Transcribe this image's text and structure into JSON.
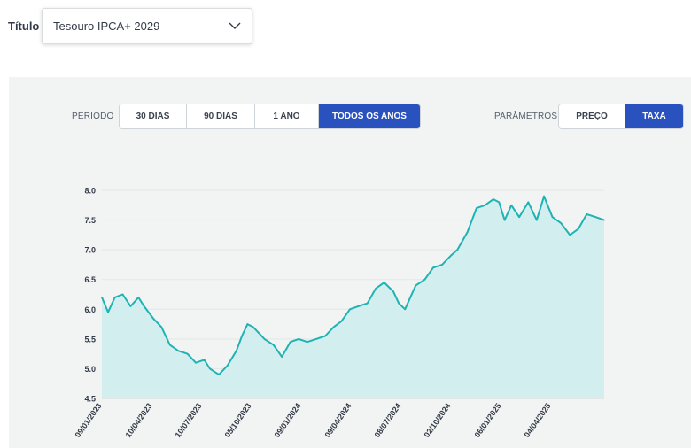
{
  "selector": {
    "label": "Título",
    "value": "Tesouro IPCA+ 2029",
    "icon": "chevron-down-icon"
  },
  "controls": {
    "period_label": "PERIODO",
    "period_options": [
      "30 DIAS",
      "90 DIAS",
      "1 ANO",
      "TODOS OS ANOS"
    ],
    "period_selected": "TODOS OS ANOS",
    "params_label": "PARÂMETROS",
    "param_options": [
      "PREÇO",
      "TAXA"
    ],
    "param_selected": "TAXA"
  },
  "colors": {
    "accent": "#2a52be",
    "line": "#1fb3b3",
    "area": "#d3eeee",
    "panel_bg": "#f2f4f3"
  },
  "chart_data": {
    "type": "area",
    "title": "",
    "xlabel": "",
    "ylabel": "",
    "ylim": [
      4.5,
      8.0
    ],
    "y_ticks": [
      "4.5",
      "5.0",
      "5.5",
      "6.0",
      "6.5",
      "7.0",
      "7.5",
      "8.0"
    ],
    "x_tick_labels": [
      "09/01/2023",
      "10/04/2023",
      "10/07/2023",
      "05/10/2023",
      "09/01/2024",
      "09/04/2024",
      "08/07/2024",
      "02/10/2024",
      "06/01/2025",
      "04/04/2025"
    ],
    "grid": true,
    "x_range": [
      "2023-01-09",
      "2025-06-20"
    ],
    "series": [
      {
        "x": [
          "2023-01-09",
          "2023-01-20",
          "2023-02-01",
          "2023-02-15",
          "2023-03-01",
          "2023-03-15",
          "2023-03-25",
          "2023-04-10",
          "2023-04-25",
          "2023-05-10",
          "2023-05-25",
          "2023-06-10",
          "2023-06-25",
          "2023-07-10",
          "2023-07-20",
          "2023-08-05",
          "2023-08-20",
          "2023-09-05",
          "2023-09-15",
          "2023-09-25",
          "2023-10-05",
          "2023-10-15",
          "2023-10-25",
          "2023-11-10",
          "2023-11-25",
          "2023-12-10",
          "2023-12-25",
          "2024-01-09",
          "2024-01-25",
          "2024-02-10",
          "2024-02-25",
          "2024-03-10",
          "2024-03-25",
          "2024-04-09",
          "2024-04-25",
          "2024-05-10",
          "2024-05-25",
          "2024-06-10",
          "2024-06-20",
          "2024-07-01",
          "2024-07-08",
          "2024-07-20",
          "2024-08-05",
          "2024-08-20",
          "2024-09-05",
          "2024-09-20",
          "2024-10-02",
          "2024-10-20",
          "2024-11-05",
          "2024-11-20",
          "2024-12-05",
          "2024-12-15",
          "2024-12-25",
          "2025-01-06",
          "2025-01-20",
          "2025-02-05",
          "2025-02-20",
          "2025-03-05",
          "2025-03-20",
          "2025-04-04",
          "2025-04-20",
          "2025-05-05",
          "2025-05-20",
          "2025-06-05",
          "2025-06-20"
        ],
        "values": [
          6.2,
          5.95,
          6.2,
          6.25,
          6.05,
          6.2,
          6.05,
          5.85,
          5.7,
          5.4,
          5.3,
          5.25,
          5.1,
          5.15,
          5.0,
          4.9,
          5.05,
          5.3,
          5.55,
          5.75,
          5.7,
          5.6,
          5.5,
          5.4,
          5.2,
          5.45,
          5.5,
          5.45,
          5.5,
          5.55,
          5.7,
          5.8,
          6.0,
          6.05,
          6.1,
          6.35,
          6.45,
          6.3,
          6.1,
          6.0,
          6.15,
          6.4,
          6.5,
          6.7,
          6.75,
          6.9,
          7.0,
          7.3,
          7.7,
          7.75,
          7.85,
          7.8,
          7.5,
          7.75,
          7.55,
          7.8,
          7.5,
          7.9,
          7.55,
          7.45,
          7.25,
          7.35,
          7.6,
          7.55,
          7.5
        ]
      }
    ]
  }
}
